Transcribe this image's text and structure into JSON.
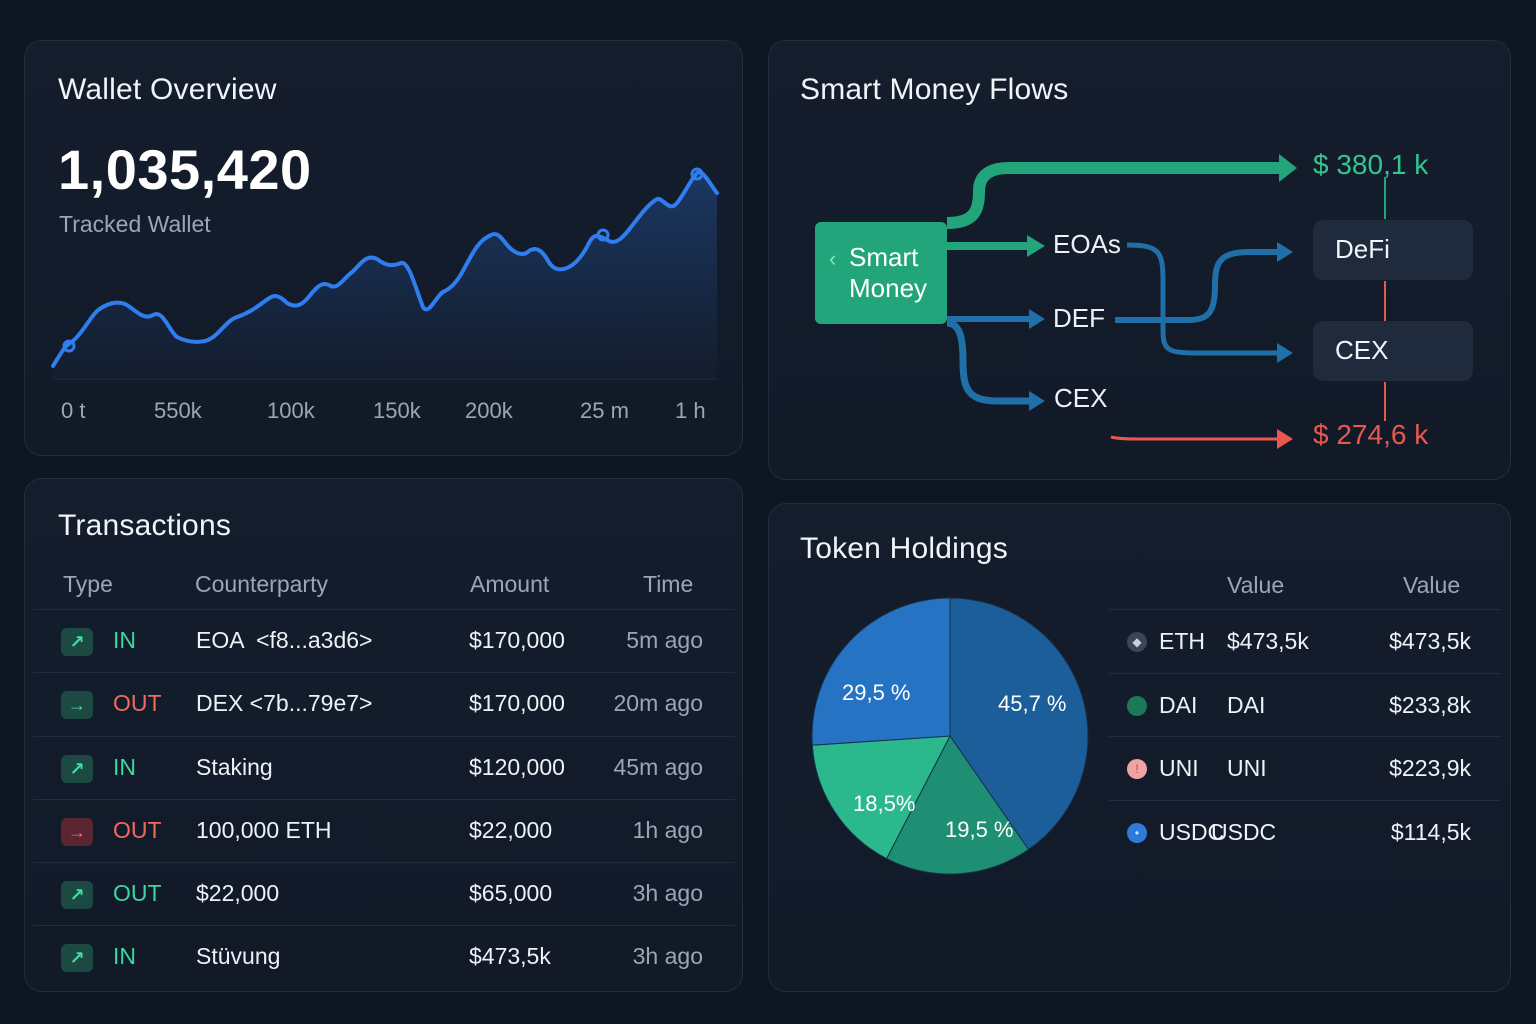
{
  "wallet": {
    "title": "Wallet Overview",
    "value": "1,035,420",
    "subtitle": "Tracked Wallet",
    "x_ticks": [
      "0 t",
      "550k",
      "100k",
      "150k",
      "200k",
      "25 m",
      "1 h"
    ]
  },
  "flows": {
    "title": "Smart Money Flows",
    "source": "Smart Money",
    "middle": [
      "EOAs",
      "DEF",
      "CEX"
    ],
    "destinations": [
      "DeFi",
      "CEX"
    ],
    "inflow_amount": "$ 380,1 k",
    "outflow_amount": "$ 274,6 k",
    "colors": {
      "green": "#22a57a",
      "blue": "#1f6fa8",
      "red": "#e8584e"
    }
  },
  "transactions": {
    "title": "Transactions",
    "headers": {
      "type": "Type",
      "counterparty": "Counterparty",
      "amount": "Amount",
      "time": "Time"
    },
    "rows": [
      {
        "direction": "in",
        "icon": "arrow-up-right-icon",
        "type": "IN",
        "counterparty": "EOA  <f8...a3d6>",
        "amount": "$170,000",
        "time": "5m ago"
      },
      {
        "direction": "in",
        "icon": "arrow-right-icon",
        "type": "OUT",
        "counterparty": "DEX <7b...79e7>",
        "amount": "$170,000",
        "time": "20m ago"
      },
      {
        "direction": "in",
        "icon": "arrow-up-right-icon",
        "type": "IN",
        "counterparty": "Staking",
        "amount": "$120,000",
        "time": "45m ago"
      },
      {
        "direction": "out",
        "icon": "arrow-right-icon",
        "type": "OUT",
        "counterparty": "100,000 ETH",
        "amount": "$22,000",
        "time": "1h ago"
      },
      {
        "direction": "in",
        "icon": "arrow-up-right-icon",
        "type": "OUT",
        "counterparty": "$22,000",
        "amount": "$65,000",
        "time": "3h ago"
      },
      {
        "direction": "in",
        "icon": "arrow-up-right-icon",
        "type": "IN",
        "counterparty": "Stüvung",
        "amount": "$473,5k",
        "time": "3h ago"
      }
    ]
  },
  "holdings": {
    "title": "Token Holdings",
    "headers": {
      "value1": "Value",
      "value2": "Value"
    },
    "rows": [
      {
        "icon": "eth-icon",
        "symbol": "ETH",
        "value1": "$473,5k",
        "value2": "$473,5k",
        "color": "#3a4658"
      },
      {
        "icon": "dai-icon",
        "symbol": "DAI",
        "value1": "DAI",
        "value2": "$233,8k",
        "color": "#1b7a55"
      },
      {
        "icon": "uni-icon",
        "symbol": "UNI",
        "value1": "UNI",
        "value2": "$223,9k",
        "color": "#f2a3a6"
      },
      {
        "icon": "usdc-icon",
        "symbol": "USDC",
        "value1": "USDC",
        "value2": "$114,5k",
        "color": "#2f7bd6"
      }
    ]
  },
  "chart_data": {
    "type": "pie",
    "slices": [
      {
        "label": "45,7 %",
        "value": 45.7,
        "color": "#1c5e99"
      },
      {
        "label": "19,5 %",
        "value": 19.5,
        "color": "#1f8f74"
      },
      {
        "label": "18,5%",
        "value": 18.5,
        "color": "#2bb88c"
      },
      {
        "label": "29,5 %",
        "value": 29.5,
        "color": "#2673c4"
      }
    ]
  }
}
